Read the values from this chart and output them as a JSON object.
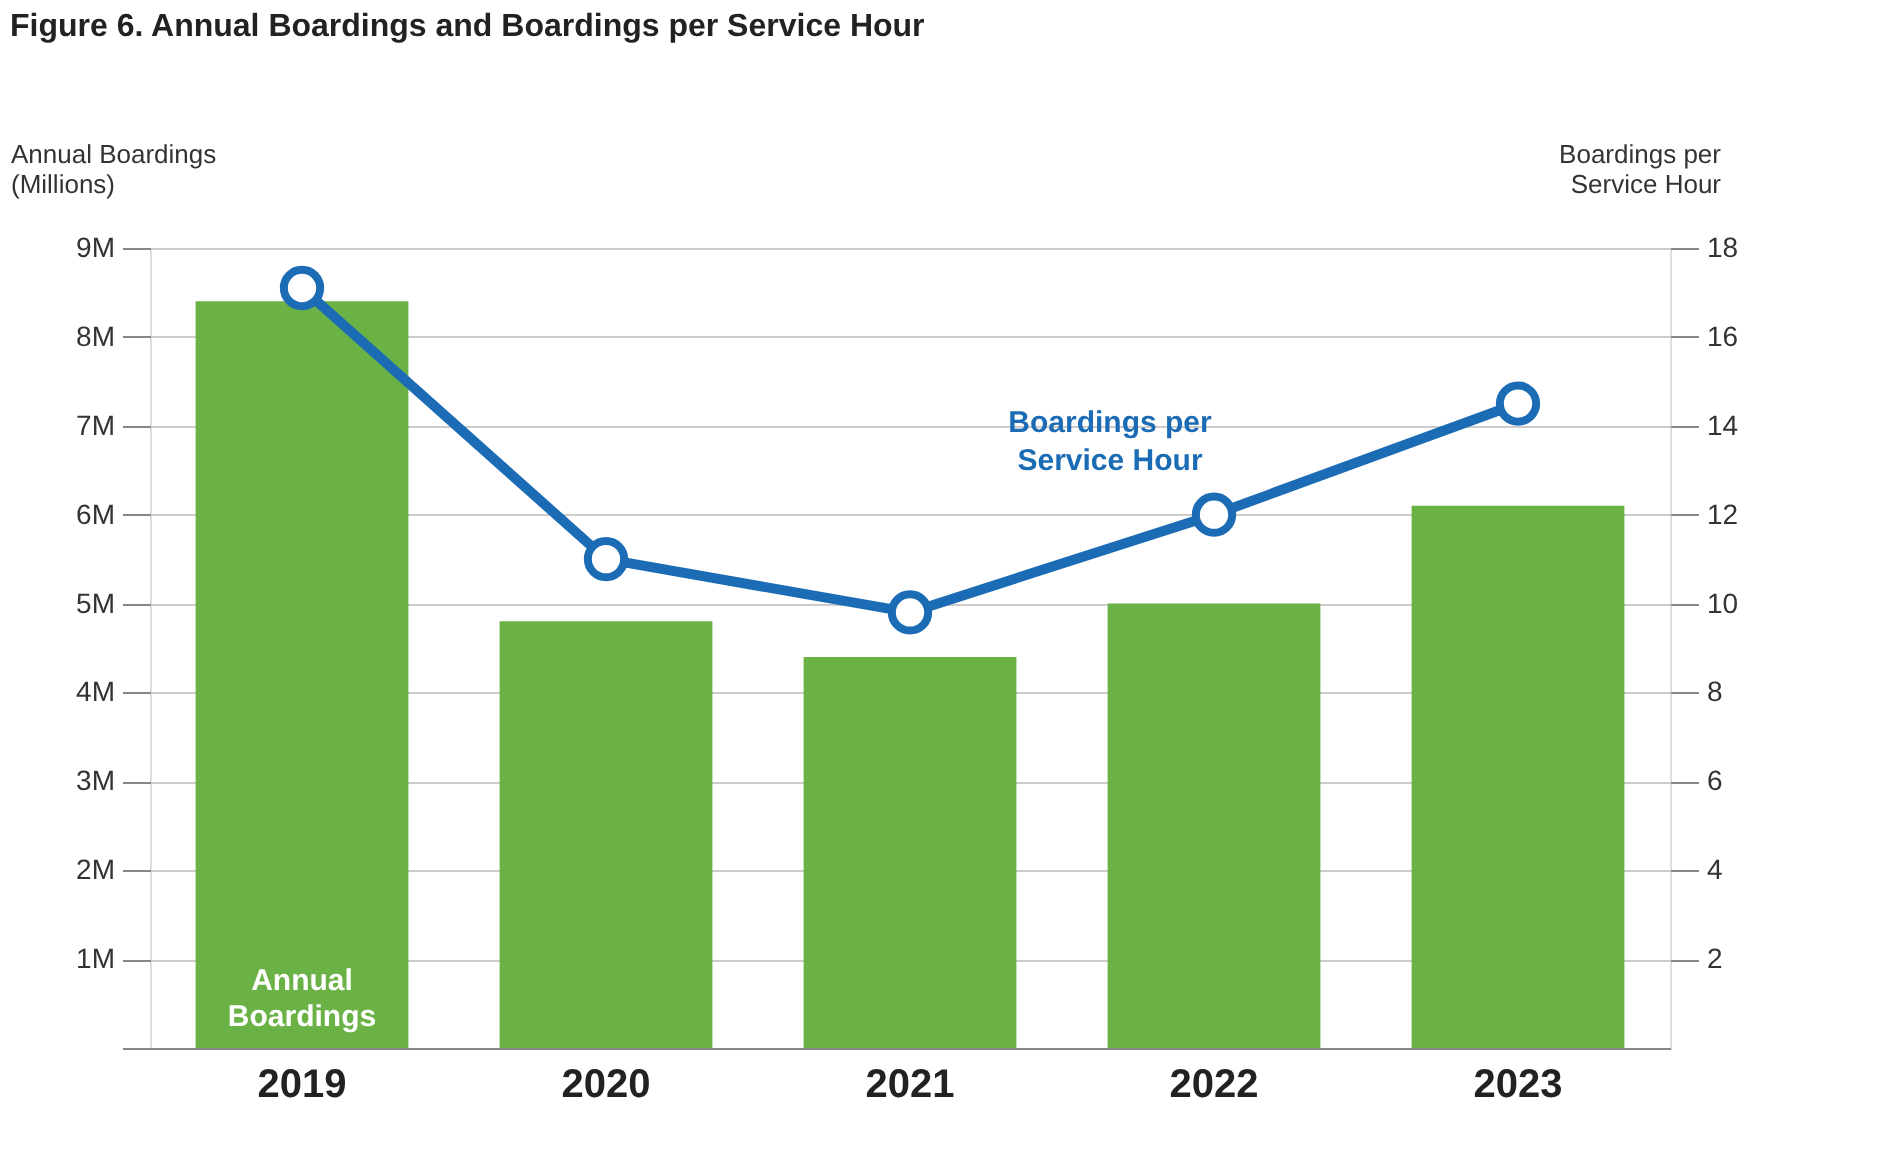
{
  "chart_data": {
    "type": "bar",
    "title": "Figure 6. Annual Boardings and Boardings per Service Hour",
    "ylabel": "Annual Boardings (Millions)",
    "y2label": "Boardings per Service Hour",
    "categories": [
      "2019",
      "2020",
      "2021",
      "2022",
      "2023"
    ],
    "series": [
      {
        "name": "Annual Boardings",
        "color": "#6ab245",
        "values": [
          8.4,
          4.8,
          4.4,
          5.0,
          6.1
        ]
      },
      {
        "name": "Boardings per Service Hour",
        "type": "line",
        "axis": "y2",
        "color": "#1b6cb5",
        "marker": "circle",
        "values": [
          17.1,
          11.0,
          9.8,
          12.0,
          14.5
        ]
      }
    ],
    "ylim": [
      0,
      9
    ],
    "yticks": [
      {
        "value": 0,
        "label": null
      },
      {
        "value": 1,
        "label": "1M"
      },
      {
        "value": 2,
        "label": "2M"
      },
      {
        "value": 3,
        "label": "3M"
      },
      {
        "value": 4,
        "label": "4M"
      },
      {
        "value": 5,
        "label": "5M"
      },
      {
        "value": 6,
        "label": "6M"
      },
      {
        "value": 7,
        "label": "7M"
      },
      {
        "value": 8,
        "label": "8M"
      },
      {
        "value": 9,
        "label": "9M"
      }
    ],
    "y2lim": [
      0,
      18
    ],
    "y2ticks": [
      2,
      4,
      6,
      8,
      10,
      12,
      14,
      16,
      18
    ],
    "grid": "y"
  }
}
